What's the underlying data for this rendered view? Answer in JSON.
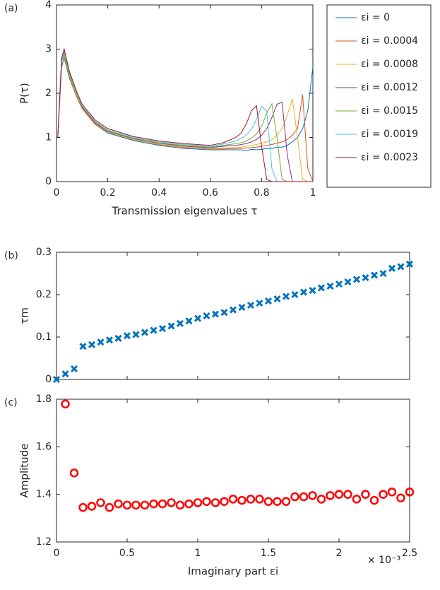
{
  "chart_data": [
    {
      "type": "line",
      "panel_label": "(a)",
      "x_label": "Transmission eigenvalues τ",
      "y_label": "P(τ)",
      "xlim": [
        0,
        1
      ],
      "ylim": [
        0,
        4
      ],
      "xticks": [
        0,
        0.2,
        0.4,
        0.6,
        0.8,
        1
      ],
      "yticks": [
        0,
        1,
        2,
        3,
        4
      ],
      "legend": "outside-right",
      "x": [
        0.005,
        0.02,
        0.03,
        0.05,
        0.08,
        0.1,
        0.15,
        0.2,
        0.3,
        0.4,
        0.5,
        0.6,
        0.65,
        0.7,
        0.72,
        0.74,
        0.76,
        0.78,
        0.8,
        0.82,
        0.84,
        0.86,
        0.88,
        0.9,
        0.92,
        0.94,
        0.96,
        0.98,
        1.0
      ],
      "series": [
        {
          "name": "εi = 0",
          "color": "#0072BD",
          "values": [
            1.0,
            2.6,
            2.8,
            2.35,
            1.9,
            1.65,
            1.3,
            1.1,
            0.93,
            0.82,
            0.75,
            0.72,
            0.72,
            0.72,
            0.72,
            0.7,
            0.73,
            0.72,
            0.73,
            0.75,
            0.75,
            0.78,
            0.78,
            0.82,
            0.9,
            1.0,
            1.2,
            1.6,
            2.6
          ]
        },
        {
          "name": "εi = 0.0004",
          "color": "#D95319",
          "values": [
            1.0,
            2.7,
            2.9,
            2.4,
            1.9,
            1.65,
            1.3,
            1.12,
            0.95,
            0.84,
            0.77,
            0.74,
            0.74,
            0.75,
            0.75,
            0.76,
            0.77,
            0.78,
            0.8,
            0.82,
            0.84,
            0.87,
            0.9,
            0.95,
            1.05,
            1.2,
            1.97,
            0.3,
            0
          ]
        },
        {
          "name": "εi = 0.0008",
          "color": "#EDB120",
          "values": [
            1.0,
            2.7,
            2.85,
            2.4,
            1.92,
            1.66,
            1.32,
            1.12,
            0.95,
            0.85,
            0.78,
            0.75,
            0.76,
            0.77,
            0.78,
            0.8,
            0.82,
            0.84,
            0.87,
            0.9,
            0.95,
            1.05,
            1.2,
            1.5,
            1.88,
            1.0,
            0.05,
            0,
            0
          ]
        },
        {
          "name": "εi = 0.0012",
          "color": "#7E2F8E",
          "values": [
            1.0,
            2.8,
            3.0,
            2.45,
            1.95,
            1.68,
            1.33,
            1.14,
            0.97,
            0.87,
            0.8,
            0.77,
            0.8,
            0.82,
            0.84,
            0.86,
            0.9,
            0.95,
            1.05,
            1.2,
            1.45,
            1.75,
            1.8,
            0.6,
            0,
            0,
            0,
            0,
            0
          ]
        },
        {
          "name": "εi = 0.0015",
          "color": "#77AC30",
          "values": [
            1.0,
            2.7,
            2.9,
            2.45,
            1.95,
            1.7,
            1.35,
            1.15,
            0.98,
            0.88,
            0.82,
            0.78,
            0.82,
            0.86,
            0.88,
            0.92,
            0.98,
            1.08,
            1.25,
            1.55,
            1.76,
            1.0,
            0.05,
            0,
            0,
            0,
            0,
            0,
            0
          ]
        },
        {
          "name": "εi = 0.0019",
          "color": "#4DBEEE",
          "values": [
            1.0,
            2.75,
            2.95,
            2.5,
            2.0,
            1.72,
            1.37,
            1.17,
            1.0,
            0.9,
            0.84,
            0.8,
            0.85,
            0.92,
            0.98,
            1.05,
            1.18,
            1.4,
            1.7,
            1.6,
            0.3,
            0,
            0,
            0,
            0,
            0,
            0,
            0,
            0
          ]
        },
        {
          "name": "εi = 0.0023",
          "color": "#A2142F",
          "values": [
            1.0,
            2.8,
            3.0,
            2.5,
            2.02,
            1.75,
            1.4,
            1.2,
            1.02,
            0.92,
            0.86,
            0.82,
            0.88,
            1.0,
            1.1,
            1.3,
            1.6,
            1.72,
            0.8,
            0.05,
            0,
            0,
            0,
            0,
            0,
            0,
            0,
            0,
            0
          ]
        }
      ]
    },
    {
      "type": "scatter",
      "panel_label": "(b)",
      "y_label": "τm",
      "marker": "x",
      "xtick_labels": false,
      "xlim": [
        0,
        2.5
      ],
      "ylim": [
        0,
        0.3
      ],
      "xticks": [
        0,
        0.5,
        1,
        1.5,
        2,
        2.5
      ],
      "yticks": [
        0,
        0.1,
        0.2,
        0.3
      ],
      "x": [
        0,
        0.0625,
        0.125,
        0.1875,
        0.25,
        0.3125,
        0.375,
        0.4375,
        0.5,
        0.5625,
        0.625,
        0.6875,
        0.75,
        0.8125,
        0.875,
        0.9375,
        1.0,
        1.0625,
        1.125,
        1.1875,
        1.25,
        1.3125,
        1.375,
        1.4375,
        1.5,
        1.5625,
        1.625,
        1.6875,
        1.75,
        1.8125,
        1.875,
        1.9375,
        2.0,
        2.0625,
        2.125,
        2.1875,
        2.25,
        2.3125,
        2.375,
        2.4375,
        2.5
      ],
      "series": [
        {
          "color": "#0072BD",
          "values": [
            0.0,
            0.013,
            0.025,
            0.078,
            0.082,
            0.088,
            0.093,
            0.097,
            0.103,
            0.106,
            0.111,
            0.116,
            0.12,
            0.126,
            0.132,
            0.138,
            0.144,
            0.15,
            0.154,
            0.158,
            0.164,
            0.17,
            0.175,
            0.18,
            0.185,
            0.19,
            0.196,
            0.2,
            0.206,
            0.21,
            0.216,
            0.22,
            0.225,
            0.23,
            0.236,
            0.24,
            0.246,
            0.25,
            0.262,
            0.266,
            0.272
          ]
        }
      ]
    },
    {
      "type": "scatter",
      "panel_label": "(c)",
      "x_label": "Imaginary part εi",
      "y_label": "Amplitude",
      "x_multiplier": "× 10⁻³",
      "marker": "o",
      "xlim": [
        0,
        2.5
      ],
      "ylim": [
        1.2,
        1.8
      ],
      "xticks": [
        0,
        0.5,
        1,
        1.5,
        2,
        2.5
      ],
      "yticks": [
        1.2,
        1.4,
        1.6,
        1.8
      ],
      "x": [
        0.0625,
        0.125,
        0.1875,
        0.25,
        0.3125,
        0.375,
        0.4375,
        0.5,
        0.5625,
        0.625,
        0.6875,
        0.75,
        0.8125,
        0.875,
        0.9375,
        1.0,
        1.0625,
        1.125,
        1.1875,
        1.25,
        1.3125,
        1.375,
        1.4375,
        1.5,
        1.5625,
        1.625,
        1.6875,
        1.75,
        1.8125,
        1.875,
        1.9375,
        2.0,
        2.0625,
        2.125,
        2.1875,
        2.25,
        2.3125,
        2.375,
        2.4375,
        2.5
      ],
      "series": [
        {
          "color": "#FF0000",
          "values": [
            1.78,
            1.49,
            1.345,
            1.35,
            1.365,
            1.345,
            1.36,
            1.355,
            1.355,
            1.355,
            1.36,
            1.36,
            1.365,
            1.355,
            1.36,
            1.365,
            1.37,
            1.365,
            1.37,
            1.38,
            1.375,
            1.38,
            1.38,
            1.37,
            1.37,
            1.37,
            1.39,
            1.39,
            1.395,
            1.38,
            1.395,
            1.4,
            1.4,
            1.38,
            1.4,
            1.375,
            1.4,
            1.41,
            1.385,
            1.41
          ]
        }
      ]
    }
  ]
}
